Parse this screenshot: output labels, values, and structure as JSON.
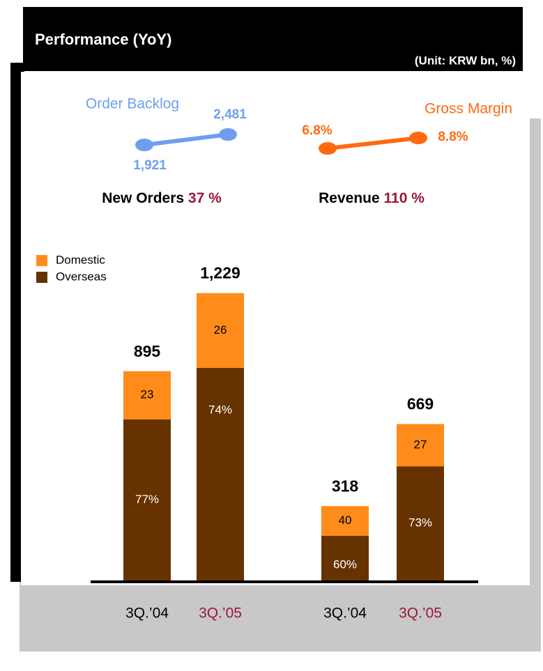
{
  "title": "Performance (YoY)",
  "unit": "(Unit: KRW bn, %)",
  "mini_charts": [
    {
      "type": "line",
      "title": "Order Backlog",
      "color": "#6f9ef0",
      "values": [
        1921,
        2481
      ],
      "value_labels": [
        "1,921",
        "2,481"
      ],
      "headline": "New Orders",
      "headline_value": "37 %"
    },
    {
      "type": "line",
      "title": "Gross Margin",
      "color": "#ff6a10",
      "values": [
        6.8,
        8.8
      ],
      "value_labels": [
        "6.8%",
        "8.8%"
      ],
      "headline": "Revenue",
      "headline_value": "110 %"
    }
  ],
  "chart_data": {
    "type": "bar",
    "stacked": true,
    "categories": [
      "3Q.’04",
      "3Q.’05",
      "3Q.’04",
      "3Q.’05"
    ],
    "category_colors": [
      "#000000",
      "#99193a",
      "#000000",
      "#99193a"
    ],
    "totals": {
      "values": [
        895,
        1229,
        318,
        669
      ],
      "value_labels": [
        "895",
        "1,229",
        "318",
        "669"
      ]
    },
    "series": [
      {
        "name": "Domestic",
        "color": "#ff8c1a",
        "values": [
          23,
          26,
          40,
          27
        ]
      },
      {
        "name": "Overseas",
        "color": "#663300",
        "values": [
          77,
          74,
          60,
          73
        ],
        "value_labels": [
          "77%",
          "74%",
          "60%",
          "73%"
        ]
      }
    ]
  }
}
